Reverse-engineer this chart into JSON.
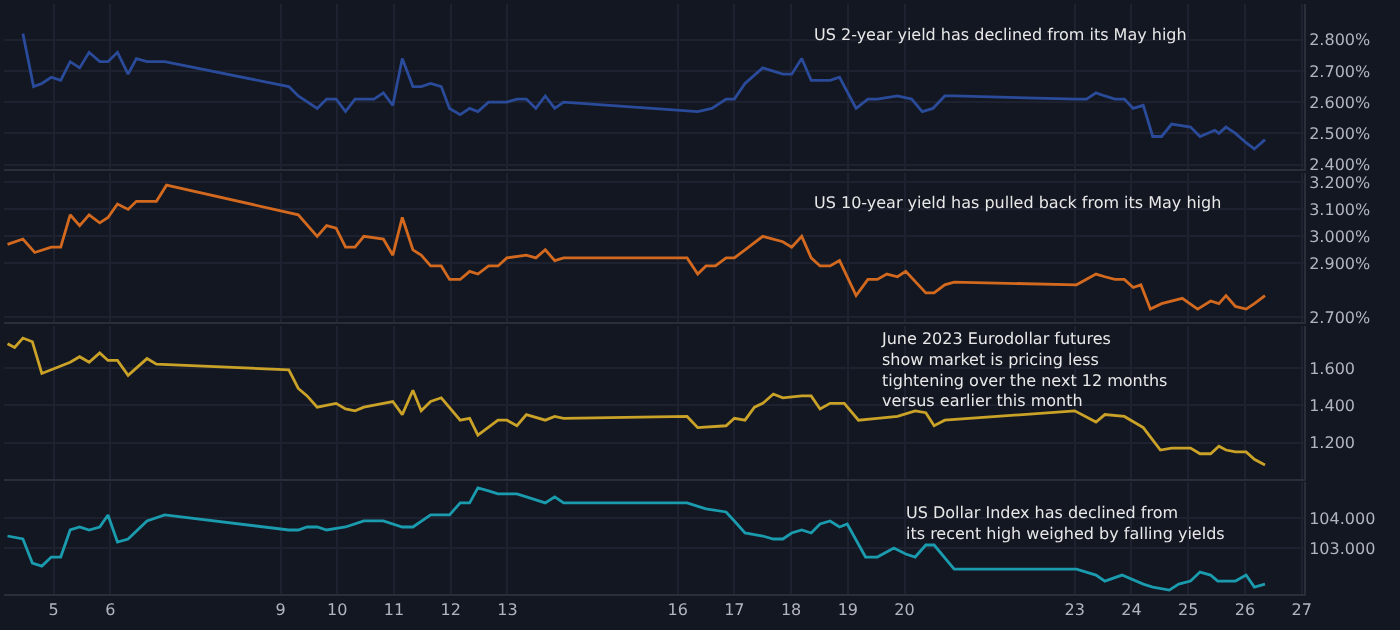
{
  "chart_data": [
    {
      "type": "line",
      "color": "#2a4a9a",
      "x": [
        "--05-04T11:00",
        "--05-04T15:30",
        "--05-04T19:00",
        "--05-04T23:00",
        "--05-05T03:00",
        "--05-05T07:00",
        "--05-05T11:00",
        "--05-05T15:00",
        "--05-05T19:30",
        "--05-05T23:00",
        "--05-06T03:00",
        "--05-06T07:30",
        "--05-06T11:00",
        "--05-06T15:30",
        "--05-06T23:00",
        "--05-09T03:30",
        "--05-09T07:30",
        "--05-09T15:30",
        "--05-09T19:30",
        "--05-09T23:30",
        "--05-10T03:30",
        "--05-10T07:30",
        "--05-10T15:30",
        "--05-10T19:30",
        "--05-10T23:30",
        "--05-11T03:30",
        "--05-11T08:00",
        "--05-11T11:30",
        "--05-11T15:30",
        "--05-11T20:00",
        "--05-11T23:30",
        "--05-12T04:00",
        "--05-12T08:00",
        "--05-12T11:30",
        "--05-12T16:00",
        "--05-12T23:45",
        "--05-13T04:00",
        "--05-13T08:00",
        "--05-13T12:00",
        "--05-13T16:00",
        "--05-13T20:00",
        "--05-13T23:45",
        "--05-16T08:30",
        "--05-16T14:30",
        "--05-16T20:30",
        "--05-17T00:00",
        "--05-17T04:30",
        "--05-17T12:00",
        "--05-17T20:30",
        "--05-18T00:15",
        "--05-18T04:30",
        "--05-18T08:30",
        "--05-18T16:30",
        "--05-18T20:30",
        "--05-19T03:30",
        "--05-19T08:30",
        "--05-19T12:30",
        "--05-19T21:00",
        "--05-20T03:00",
        "--05-20T07:30",
        "--05-20T12:00",
        "--05-20T17:00",
        "--05-20T21:00",
        "--05-23T00:45",
        "--05-23T05:00",
        "--05-23T09:00",
        "--05-23T12:45",
        "--05-23T17:00",
        "--05-23T21:00",
        "--05-24T00:45",
        "--05-24T05:00",
        "--05-24T09:00",
        "--05-24T12:45",
        "--05-24T17:00",
        "--05-25T01:00",
        "--05-25T05:00",
        "--05-25T11:15",
        "--05-25T13:00",
        "--05-25T16:00",
        "--05-25T20:00",
        "--05-26T00:30",
        "--05-26T04:00",
        "--05-26T08:30"
      ],
      "values": [
        2.82,
        2.65,
        2.66,
        2.68,
        2.67,
        2.73,
        2.71,
        2.76,
        2.73,
        2.73,
        2.76,
        2.69,
        2.74,
        2.73,
        2.73,
        2.65,
        2.62,
        2.58,
        2.61,
        2.61,
        2.57,
        2.61,
        2.61,
        2.63,
        2.59,
        2.74,
        2.65,
        2.65,
        2.66,
        2.65,
        2.58,
        2.56,
        2.58,
        2.57,
        2.6,
        2.6,
        2.61,
        2.61,
        2.58,
        2.62,
        2.58,
        2.6,
        2.57,
        2.58,
        2.61,
        2.61,
        2.66,
        2.71,
        2.69,
        2.69,
        2.74,
        2.67,
        2.67,
        2.68,
        2.58,
        2.61,
        2.61,
        2.62,
        2.61,
        2.57,
        2.58,
        2.62,
        2.62,
        2.61,
        2.61,
        2.63,
        2.62,
        2.61,
        2.61,
        2.58,
        2.59,
        2.49,
        2.49,
        2.53,
        2.52,
        2.49,
        2.51,
        2.5,
        2.52,
        2.5,
        2.47,
        2.45,
        2.48
      ],
      "xlim": [
        "--05-04T03:00",
        "--05-27T01:00"
      ],
      "xticks": [
        {
          "value": "--05-05",
          "label": "5"
        },
        {
          "value": "--05-06",
          "label": "6"
        },
        {
          "value": "--05-09",
          "label": "9"
        },
        {
          "value": "--05-10",
          "label": "10"
        },
        {
          "value": "--05-11",
          "label": "11"
        },
        {
          "value": "--05-12",
          "label": "12"
        },
        {
          "value": "--05-13",
          "label": "13"
        },
        {
          "value": "--05-16",
          "label": "16"
        },
        {
          "value": "--05-17",
          "label": "17"
        },
        {
          "value": "--05-18",
          "label": "18"
        },
        {
          "value": "--05-19",
          "label": "19"
        },
        {
          "value": "--05-20",
          "label": "20"
        },
        {
          "value": "--05-23",
          "label": "23"
        },
        {
          "value": "--05-24",
          "label": "24"
        },
        {
          "value": "--05-25",
          "label": "25"
        },
        {
          "value": "--05-26",
          "label": "26"
        },
        {
          "value": "--05-27",
          "label": "27"
        }
      ],
      "ylim": [
        2.385,
        2.915
      ],
      "yticks": [
        {
          "value": 2.4,
          "label": "2.400%"
        },
        {
          "value": 2.5,
          "label": "2.500%"
        },
        {
          "value": 2.6,
          "label": "2.600%"
        },
        {
          "value": 2.7,
          "label": "2.700%"
        },
        {
          "value": 2.8,
          "label": "2.800%"
        }
      ],
      "grid": true,
      "tick_labels": "y",
      "annotations": [
        "US 2-year yield has declined from its May high"
      ]
    },
    {
      "type": "line",
      "color": "#d2691e",
      "x": [
        "--05-04T04:30",
        "--05-04T11:00",
        "--05-04T16:00",
        "--05-04T23:00",
        "--05-05T03:00",
        "--05-05T07:00",
        "--05-05T11:00",
        "--05-05T15:00",
        "--05-05T19:30",
        "--05-05T23:00",
        "--05-06T03:00",
        "--05-06T07:30",
        "--05-06T11:00",
        "--05-06T19:30",
        "--05-06T23:45",
        "--05-09T07:30",
        "--05-09T15:30",
        "--05-09T19:30",
        "--05-09T23:30",
        "--05-10T03:30",
        "--05-10T07:30",
        "--05-10T11:15",
        "--05-10T19:30",
        "--05-10T23:30",
        "--05-11T03:30",
        "--05-11T08:00",
        "--05-11T11:30",
        "--05-11T15:30",
        "--05-11T20:00",
        "--05-11T23:30",
        "--05-12T04:00",
        "--05-12T08:00",
        "--05-12T11:30",
        "--05-12T16:00",
        "--05-12T20:00",
        "--05-12T23:45",
        "--05-13T08:00",
        "--05-13T12:00",
        "--05-13T16:00",
        "--05-13T20:00",
        "--05-13T23:45",
        "--05-16T04:00",
        "--05-16T08:30",
        "--05-16T12:00",
        "--05-16T16:00",
        "--05-16T20:30",
        "--05-17T00:00",
        "--05-17T04:30",
        "--05-17T12:00",
        "--05-17T20:30",
        "--05-18T00:15",
        "--05-18T04:30",
        "--05-18T08:30",
        "--05-18T12:15",
        "--05-18T16:30",
        "--05-18T20:30",
        "--05-19T03:30",
        "--05-19T08:30",
        "--05-19T12:30",
        "--05-19T16:30",
        "--05-19T21:00",
        "--05-20T00:30",
        "--05-20T09:00",
        "--05-20T12:30",
        "--05-20T17:00",
        "--05-20T21:00",
        "--05-23T00:45",
        "--05-23T09:00",
        "--05-23T12:45",
        "--05-23T17:00",
        "--05-23T21:00",
        "--05-24T00:45",
        "--05-24T04:00",
        "--05-24T08:00",
        "--05-24T12:45",
        "--05-24T21:30",
        "--05-25T04:00",
        "--05-25T09:30",
        "--05-25T13:00",
        "--05-25T16:00",
        "--05-25T20:00",
        "--05-26T00:30",
        "--05-26T04:00",
        "--05-26T08:30"
      ],
      "values": [
        2.97,
        2.99,
        2.94,
        2.96,
        2.96,
        3.08,
        3.04,
        3.08,
        3.05,
        3.07,
        3.12,
        3.1,
        3.13,
        3.13,
        3.19,
        3.08,
        3.0,
        3.04,
        3.03,
        2.96,
        2.96,
        3.0,
        2.99,
        2.93,
        3.07,
        2.95,
        2.93,
        2.89,
        2.89,
        2.84,
        2.84,
        2.87,
        2.86,
        2.89,
        2.89,
        2.92,
        2.93,
        2.92,
        2.95,
        2.91,
        2.92,
        2.92,
        2.86,
        2.89,
        2.89,
        2.92,
        2.92,
        2.95,
        3.0,
        2.98,
        2.96,
        3.0,
        2.92,
        2.89,
        2.89,
        2.91,
        2.78,
        2.84,
        2.84,
        2.86,
        2.85,
        2.87,
        2.79,
        2.79,
        2.82,
        2.83,
        2.82,
        2.86,
        2.85,
        2.84,
        2.84,
        2.81,
        2.82,
        2.73,
        2.75,
        2.77,
        2.73,
        2.76,
        2.75,
        2.78,
        2.74,
        2.73,
        2.75,
        2.78
      ],
      "xlim": [
        "--05-04T03:00",
        "--05-27T01:00"
      ],
      "xticks": [
        {
          "value": "--05-05",
          "label": "5"
        },
        {
          "value": "--05-06",
          "label": "6"
        },
        {
          "value": "--05-09",
          "label": "9"
        },
        {
          "value": "--05-10",
          "label": "10"
        },
        {
          "value": "--05-11",
          "label": "11"
        },
        {
          "value": "--05-12",
          "label": "12"
        },
        {
          "value": "--05-13",
          "label": "13"
        },
        {
          "value": "--05-16",
          "label": "16"
        },
        {
          "value": "--05-17",
          "label": "17"
        },
        {
          "value": "--05-18",
          "label": "18"
        },
        {
          "value": "--05-19",
          "label": "19"
        },
        {
          "value": "--05-20",
          "label": "20"
        },
        {
          "value": "--05-23",
          "label": "23"
        },
        {
          "value": "--05-24",
          "label": "24"
        },
        {
          "value": "--05-25",
          "label": "25"
        },
        {
          "value": "--05-26",
          "label": "26"
        },
        {
          "value": "--05-27",
          "label": "27"
        }
      ],
      "ylim": [
        2.682,
        3.236
      ],
      "yticks": [
        {
          "value": 2.7,
          "label": "2.700%"
        },
        {
          "value": 2.9,
          "label": "2.900%"
        },
        {
          "value": 3.0,
          "label": "3.000%"
        },
        {
          "value": 3.1,
          "label": "3.100%"
        },
        {
          "value": 3.2,
          "label": "3.200%"
        }
      ],
      "grid": true,
      "tick_labels": "y",
      "annotations": [
        "US 10-year yield has pulled back from its May high"
      ]
    },
    {
      "type": "line",
      "color": "#c9a227",
      "x": [
        "--05-04T04:30",
        "--05-04T07:30",
        "--05-04T11:00",
        "--05-04T15:00",
        "--05-04T19:00",
        "--05-05T07:00",
        "--05-05T11:00",
        "--05-05T15:00",
        "--05-05T19:30",
        "--05-05T23:00",
        "--05-06T03:00",
        "--05-06T07:30",
        "--05-06T15:30",
        "--05-06T19:30",
        "--05-09T03:30",
        "--05-09T07:30",
        "--05-09T11:15",
        "--05-09T15:30",
        "--05-09T23:30",
        "--05-10T03:30",
        "--05-10T07:30",
        "--05-10T11:15",
        "--05-10T19:30",
        "--05-10T23:30",
        "--05-11T03:30",
        "--05-11T08:00",
        "--05-11T11:30",
        "--05-11T15:30",
        "--05-11T20:00",
        "--05-12T04:00",
        "--05-12T08:00",
        "--05-12T11:30",
        "--05-12T20:00",
        "--05-12T23:45",
        "--05-13T04:00",
        "--05-13T08:00",
        "--05-13T16:00",
        "--05-13T20:00",
        "--05-13T23:45",
        "--05-16T04:00",
        "--05-16T08:30",
        "--05-16T20:30",
        "--05-17T00:00",
        "--05-17T04:30",
        "--05-17T08:30",
        "--05-17T12:00",
        "--05-17T16:30",
        "--05-17T20:30",
        "--05-18T04:30",
        "--05-18T08:30",
        "--05-18T12:15",
        "--05-18T16:30",
        "--05-18T22:30",
        "--05-19T04:30",
        "--05-19T12:30",
        "--05-19T21:00",
        "--05-20T04:30",
        "--05-20T09:00",
        "--05-20T12:30",
        "--05-20T17:00",
        "--05-23T00:00",
        "--05-23T09:00",
        "--05-23T12:45",
        "--05-23T21:00",
        "--05-24T05:00",
        "--05-24T12:15",
        "--05-24T17:00",
        "--05-25T01:00",
        "--05-25T05:00",
        "--05-25T09:30",
        "--05-25T13:00",
        "--05-25T16:00",
        "--05-25T20:00",
        "--05-26T00:30",
        "--05-26T04:00",
        "--05-26T08:30"
      ],
      "values": [
        1.73,
        1.71,
        1.76,
        1.74,
        1.57,
        1.63,
        1.66,
        1.63,
        1.68,
        1.64,
        1.64,
        1.56,
        1.65,
        1.62,
        1.59,
        1.49,
        1.45,
        1.39,
        1.41,
        1.38,
        1.37,
        1.39,
        1.41,
        1.42,
        1.35,
        1.48,
        1.37,
        1.42,
        1.44,
        1.32,
        1.33,
        1.24,
        1.32,
        1.32,
        1.29,
        1.35,
        1.32,
        1.34,
        1.33,
        1.34,
        1.28,
        1.29,
        1.33,
        1.32,
        1.39,
        1.41,
        1.46,
        1.44,
        1.45,
        1.45,
        1.38,
        1.41,
        1.41,
        1.32,
        1.33,
        1.34,
        1.37,
        1.36,
        1.29,
        1.32,
        1.37,
        1.31,
        1.35,
        1.34,
        1.28,
        1.16,
        1.17,
        1.17,
        1.14,
        1.14,
        1.18,
        1.16,
        1.15,
        1.15,
        1.11,
        1.08
      ],
      "xlim": [
        "--05-04T03:00",
        "--05-27T01:00"
      ],
      "xticks": [
        {
          "value": "--05-05",
          "label": "5"
        },
        {
          "value": "--05-06",
          "label": "6"
        },
        {
          "value": "--05-09",
          "label": "9"
        },
        {
          "value": "--05-10",
          "label": "10"
        },
        {
          "value": "--05-11",
          "label": "11"
        },
        {
          "value": "--05-12",
          "label": "12"
        },
        {
          "value": "--05-13",
          "label": "13"
        },
        {
          "value": "--05-16",
          "label": "16"
        },
        {
          "value": "--05-17",
          "label": "17"
        },
        {
          "value": "--05-18",
          "label": "18"
        },
        {
          "value": "--05-19",
          "label": "19"
        },
        {
          "value": "--05-20",
          "label": "20"
        },
        {
          "value": "--05-23",
          "label": "23"
        },
        {
          "value": "--05-24",
          "label": "24"
        },
        {
          "value": "--05-25",
          "label": "25"
        },
        {
          "value": "--05-26",
          "label": "26"
        },
        {
          "value": "--05-27",
          "label": "27"
        }
      ],
      "ylim": [
        1.005,
        1.827
      ],
      "yticks": [
        {
          "value": 1.2,
          "label": "1.200"
        },
        {
          "value": 1.4,
          "label": "1.400"
        },
        {
          "value": 1.6,
          "label": "1.600"
        }
      ],
      "grid": true,
      "tick_labels": "y",
      "annotations": [
        "June 2023 Eurodollar futures\nshow market is pricing less\ntightening over the next 12 months\nversus earlier this month"
      ]
    },
    {
      "type": "line",
      "color": "#1a9bae",
      "x": [
        "--05-04T04:30",
        "--05-04T11:00",
        "--05-04T15:00",
        "--05-04T19:00",
        "--05-04T23:00",
        "--05-05T03:00",
        "--05-05T07:00",
        "--05-05T11:00",
        "--05-05T15:00",
        "--05-05T19:30",
        "--05-05T23:00",
        "--05-06T03:00",
        "--05-06T07:30",
        "--05-06T15:30",
        "--05-06T23:00",
        "--05-09T03:30",
        "--05-09T07:30",
        "--05-09T11:15",
        "--05-09T15:30",
        "--05-09T19:30",
        "--05-10T03:30",
        "--05-10T11:15",
        "--05-10T15:30",
        "--05-10T19:30",
        "--05-11T03:30",
        "--05-11T08:00",
        "--05-11T15:30",
        "--05-11T23:30",
        "--05-12T04:00",
        "--05-12T08:00",
        "--05-12T11:30",
        "--05-12T16:00",
        "--05-12T20:00",
        "--05-13T04:00",
        "--05-13T08:00",
        "--05-13T16:00",
        "--05-13T20:00",
        "--05-13T23:45",
        "--05-16T04:00",
        "--05-16T12:00",
        "--05-16T20:30",
        "--05-17T00:00",
        "--05-17T04:30",
        "--05-17T12:00",
        "--05-17T16:30",
        "--05-17T20:30",
        "--05-18T00:15",
        "--05-18T04:30",
        "--05-18T08:30",
        "--05-18T12:15",
        "--05-18T16:30",
        "--05-18T20:30",
        "--05-18T23:45",
        "--05-19T07:30",
        "--05-19T12:30",
        "--05-19T19:30",
        "--05-20T00:30",
        "--05-20T04:30",
        "--05-20T09:00",
        "--05-20T12:30",
        "--05-20T21:00",
        "--05-23T00:45",
        "--05-23T09:00",
        "--05-23T12:45",
        "--05-23T20:00",
        "--05-24T05:00",
        "--05-24T09:00",
        "--05-24T16:00",
        "--05-24T20:00",
        "--05-25T01:00",
        "--05-25T05:00",
        "--05-25T09:30",
        "--05-25T12:30",
        "--05-25T20:00",
        "--05-26T00:30",
        "--05-26T04:00",
        "--05-26T08:30"
      ],
      "values": [
        103.4,
        103.3,
        102.5,
        102.4,
        102.7,
        102.7,
        103.6,
        103.7,
        103.6,
        103.7,
        104.1,
        103.2,
        103.3,
        103.9,
        104.1,
        103.6,
        103.6,
        103.7,
        103.7,
        103.6,
        103.7,
        103.9,
        103.9,
        103.9,
        103.7,
        103.7,
        104.1,
        104.1,
        104.5,
        104.5,
        105.0,
        104.9,
        104.8,
        104.8,
        104.7,
        104.5,
        104.7,
        104.5,
        104.5,
        104.3,
        104.2,
        103.9,
        103.5,
        103.4,
        103.3,
        103.3,
        103.5,
        103.6,
        103.5,
        103.8,
        103.9,
        103.7,
        103.8,
        102.7,
        102.7,
        103.0,
        102.8,
        102.7,
        103.1,
        103.1,
        102.3,
        102.3,
        102.1,
        101.9,
        102.1,
        101.8,
        101.7,
        101.6,
        101.8,
        101.9,
        102.2,
        102.1,
        101.9,
        101.9,
        102.1,
        101.7,
        101.8
      ],
      "xlim": [
        "--05-04T03:00",
        "--05-27T01:00"
      ],
      "xticks": [
        {
          "value": "--05-05",
          "label": "5"
        },
        {
          "value": "--05-06",
          "label": "6"
        },
        {
          "value": "--05-09",
          "label": "9"
        },
        {
          "value": "--05-10",
          "label": "10"
        },
        {
          "value": "--05-11",
          "label": "11"
        },
        {
          "value": "--05-12",
          "label": "12"
        },
        {
          "value": "--05-13",
          "label": "13"
        },
        {
          "value": "--05-16",
          "label": "16"
        },
        {
          "value": "--05-17",
          "label": "17"
        },
        {
          "value": "--05-18",
          "label": "18"
        },
        {
          "value": "--05-19",
          "label": "19"
        },
        {
          "value": "--05-20",
          "label": "20"
        },
        {
          "value": "--05-23",
          "label": "23"
        },
        {
          "value": "--05-24",
          "label": "24"
        },
        {
          "value": "--05-25",
          "label": "25"
        },
        {
          "value": "--05-26",
          "label": "26"
        },
        {
          "value": "--05-27",
          "label": "27"
        }
      ],
      "ylim": [
        101.47,
        105.2
      ],
      "yticks": [
        {
          "value": 103,
          "label": "103.000"
        },
        {
          "value": 104,
          "label": "104.000"
        }
      ],
      "grid": true,
      "annotations": [
        "US Dollar Index has declined from\nits recent high weighed by falling yields"
      ]
    }
  ]
}
